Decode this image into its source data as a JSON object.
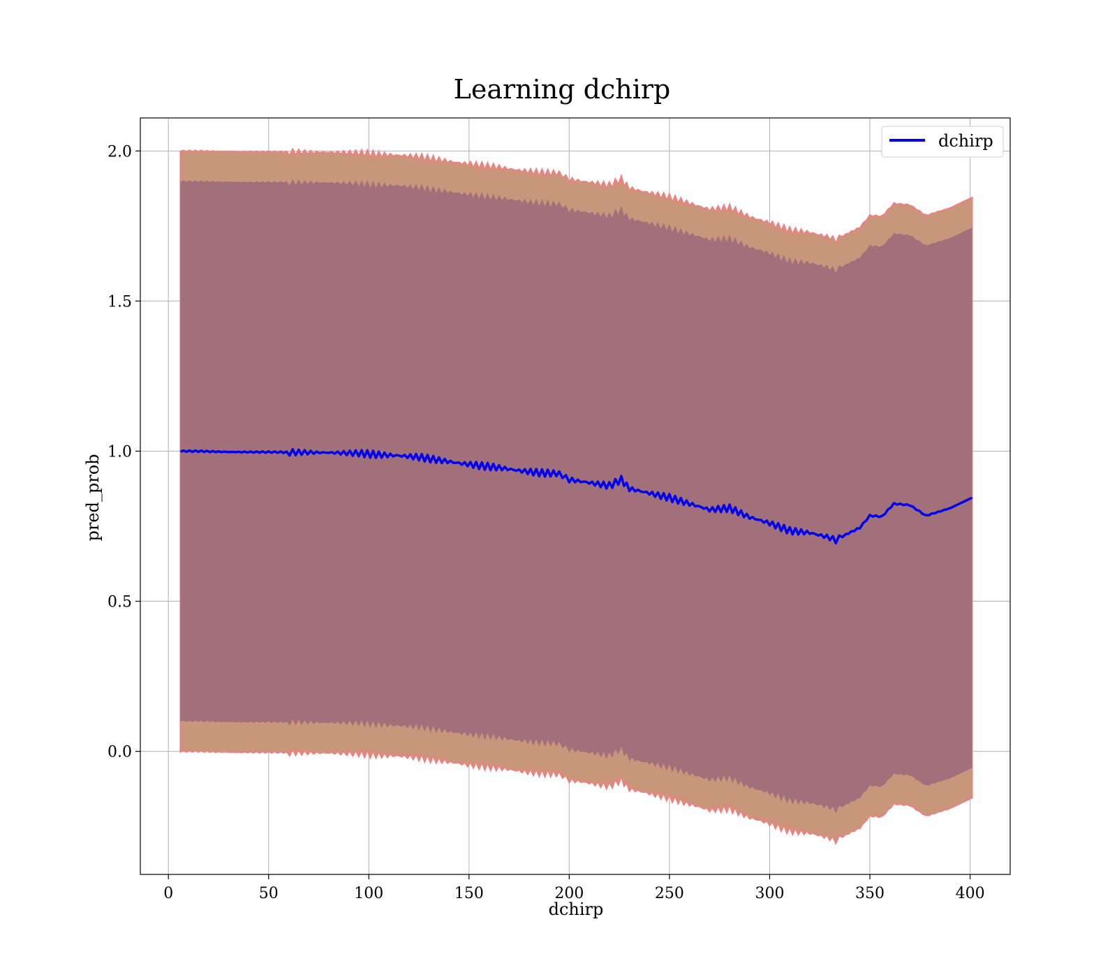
{
  "chart_data": {
    "type": "line",
    "title": "Learning dchirp",
    "xlabel": "dchirp",
    "ylabel": "pred_prob",
    "xlim": [
      -14,
      420
    ],
    "ylim": [
      -0.41,
      2.11
    ],
    "xticks": [
      0,
      50,
      100,
      150,
      200,
      250,
      300,
      350,
      400
    ],
    "yticks": [
      0.0,
      0.5,
      1.0,
      1.5,
      2.0
    ],
    "xtick_labels": [
      "0",
      "50",
      "100",
      "150",
      "200",
      "250",
      "300",
      "350",
      "400"
    ],
    "ytick_labels": [
      "0.0",
      "0.5",
      "1.0",
      "1.5",
      "2.0"
    ],
    "grid": true,
    "legend": {
      "position": "top-right",
      "entries": [
        "dchirp"
      ]
    },
    "colors": {
      "line": "#0000ee",
      "outer_band": "#c8967a",
      "inner_band": "#a1707a",
      "band_edge": "#f08080"
    },
    "series": [
      {
        "name": "dchirp",
        "x": [
          6,
          15,
          25,
          35,
          50,
          65,
          80,
          95,
          105,
          115,
          125,
          135,
          145,
          155,
          165,
          175,
          185,
          195,
          200,
          210,
          220,
          226,
          230,
          240,
          250,
          260,
          270,
          280,
          290,
          300,
          310,
          320,
          330,
          333,
          338,
          345,
          350,
          356,
          362,
          370,
          378,
          390,
          401
        ],
        "y": [
          1.0,
          1.0,
          0.998,
          0.997,
          0.997,
          0.996,
          0.995,
          0.993,
          0.988,
          0.985,
          0.98,
          0.97,
          0.96,
          0.952,
          0.945,
          0.935,
          0.928,
          0.925,
          0.905,
          0.895,
          0.885,
          0.905,
          0.875,
          0.86,
          0.845,
          0.825,
          0.805,
          0.81,
          0.78,
          0.76,
          0.735,
          0.728,
          0.712,
          0.703,
          0.722,
          0.745,
          0.785,
          0.782,
          0.825,
          0.82,
          0.785,
          0.81,
          0.845
        ],
        "inner_band_halfwidth": 0.9,
        "outer_band_halfwidth": 1.0
      }
    ]
  }
}
